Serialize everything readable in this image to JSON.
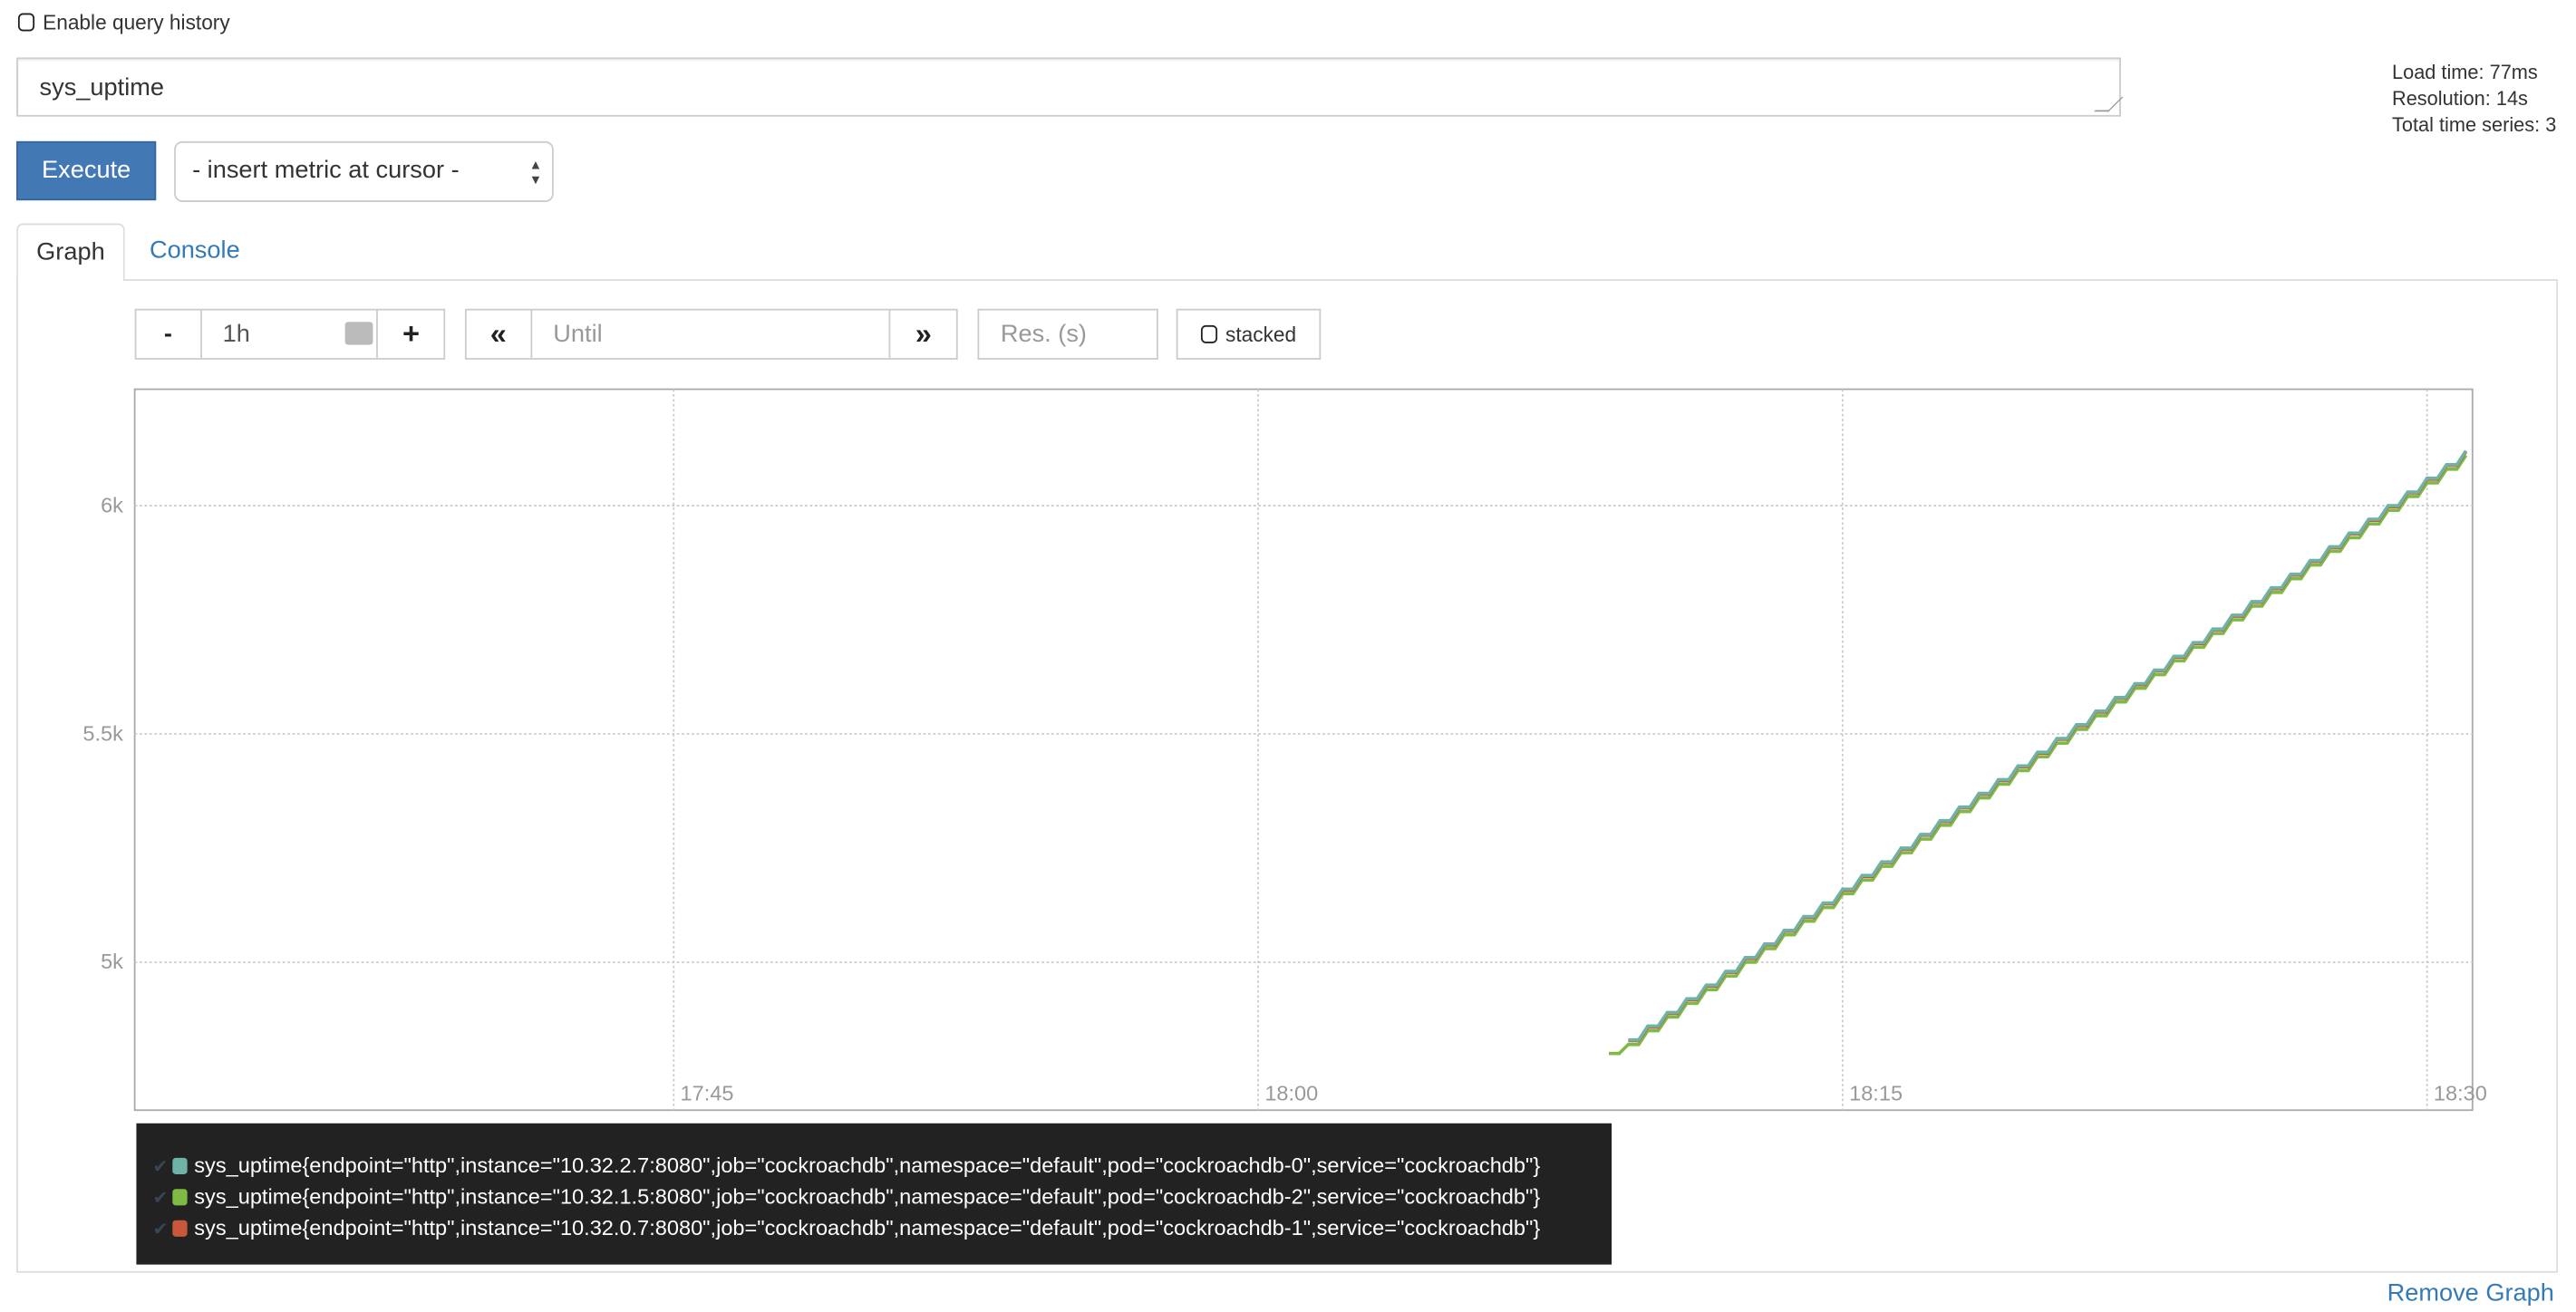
{
  "query_history": {
    "label": "Enable query history",
    "checked": false
  },
  "expression": {
    "value": "sys_uptime"
  },
  "stats": {
    "load_time": "Load time: 77ms",
    "resolution": "Resolution: 14s",
    "total_series": "Total time series: 3"
  },
  "execute_label": "Execute",
  "metric_select": {
    "value": "- insert metric at cursor -"
  },
  "tabs": [
    {
      "label": "Graph",
      "active": true
    },
    {
      "label": "Console",
      "active": false
    }
  ],
  "controls": {
    "range_minus": "-",
    "range_value": "1h",
    "range_plus": "+",
    "back": "«",
    "until_placeholder": "Until",
    "forward": "»",
    "res_placeholder": "Res. (s)",
    "stacked_label": "stacked"
  },
  "remove_graph": "Remove Graph",
  "chart_data": {
    "type": "line",
    "xlabel": "",
    "ylabel": "",
    "x_ticks": [
      "17:45",
      "18:00",
      "18:15",
      "18:30"
    ],
    "y_ticks": [
      "5k",
      "5.5k",
      "6k"
    ],
    "y_tick_values": [
      5000,
      5500,
      6000
    ],
    "xlim": [
      "17:31:10",
      "18:31:10"
    ],
    "ylim": [
      4676,
      6255
    ],
    "grid": true,
    "legend": "bottom",
    "x": [
      "18:09:00",
      "18:09:30",
      "18:10:00",
      "18:10:30",
      "18:11:00",
      "18:11:30",
      "18:12:00",
      "18:12:30",
      "18:13:00",
      "18:13:30",
      "18:14:00",
      "18:14:30",
      "18:15:00",
      "18:15:30",
      "18:16:00",
      "18:16:30",
      "18:17:00",
      "18:17:30",
      "18:18:00",
      "18:18:30",
      "18:19:00",
      "18:19:30",
      "18:20:00",
      "18:20:30",
      "18:21:00",
      "18:21:30",
      "18:22:00",
      "18:22:30",
      "18:23:00",
      "18:23:30",
      "18:24:00",
      "18:24:30",
      "18:25:00",
      "18:25:30",
      "18:26:00",
      "18:26:30",
      "18:27:00",
      "18:27:30",
      "18:28:00",
      "18:28:30",
      "18:29:00",
      "18:29:30",
      "18:30:00",
      "18:30:30",
      "18:31:00"
    ],
    "series": [
      {
        "name": "sys_uptime{endpoint=\"http\",instance=\"10.32.2.7:8080\",job=\"cockroachdb\",namespace=\"default\",pod=\"cockroachdb-0\",service=\"cockroachdb\"}",
        "color": "#6fb3a6",
        "values": [
          null,
          4830,
          4860,
          4890,
          4920,
          4950,
          4980,
          5010,
          5040,
          5070,
          5100,
          5130,
          5160,
          5190,
          5220,
          5250,
          5280,
          5310,
          5340,
          5370,
          5400,
          5430,
          5460,
          5490,
          5520,
          5550,
          5580,
          5610,
          5640,
          5670,
          5700,
          5730,
          5760,
          5790,
          5820,
          5850,
          5880,
          5910,
          5940,
          5970,
          6000,
          6030,
          6060,
          6090,
          6120
        ]
      },
      {
        "name": "sys_uptime{endpoint=\"http\",instance=\"10.32.1.5:8080\",job=\"cockroachdb\",namespace=\"default\",pod=\"cockroachdb-2\",service=\"cockroachdb\"}",
        "color": "#7fba45",
        "values": [
          4800,
          4820,
          4850,
          4880,
          4910,
          4940,
          4970,
          5000,
          5030,
          5060,
          5090,
          5120,
          5150,
          5180,
          5210,
          5240,
          5270,
          5300,
          5330,
          5360,
          5390,
          5420,
          5450,
          5480,
          5510,
          5540,
          5570,
          5600,
          5630,
          5660,
          5690,
          5720,
          5750,
          5780,
          5810,
          5840,
          5870,
          5900,
          5930,
          5960,
          5990,
          6020,
          6050,
          6080,
          6110
        ]
      },
      {
        "name": "sys_uptime{endpoint=\"http\",instance=\"10.32.0.7:8080\",job=\"cockroachdb\",namespace=\"default\",pod=\"cockroachdb-1\",service=\"cockroachdb\"}",
        "color": "#c9573a",
        "values": [
          null,
          4828,
          4858,
          4888,
          4918,
          4948,
          4978,
          5008,
          5038,
          5068,
          5098,
          5128,
          5158,
          5188,
          5218,
          5248,
          5278,
          5308,
          5338,
          5368,
          5398,
          5428,
          5458,
          5488,
          5518,
          5548,
          5578,
          5608,
          5638,
          5668,
          5698,
          5728,
          5758,
          5788,
          5818,
          5848,
          5878,
          5908,
          5938,
          5968,
          5998,
          6028,
          6058,
          6088,
          6118
        ]
      }
    ]
  }
}
